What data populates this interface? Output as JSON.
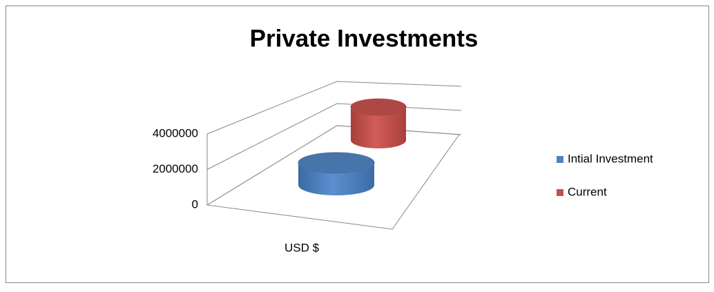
{
  "chart_data": {
    "type": "cylinder",
    "title": "Private Investments",
    "categories": [
      "USD $"
    ],
    "series": [
      {
        "name": "Intial Investment",
        "color": "#4f81bd",
        "values": [
          1600000
        ]
      },
      {
        "name": "Current",
        "color": "#c0504d",
        "values": [
          3300000
        ]
      }
    ],
    "ylim": [
      0,
      4000000
    ],
    "yticks": [
      0,
      2000000,
      4000000
    ],
    "grid": true,
    "legend": "right"
  }
}
